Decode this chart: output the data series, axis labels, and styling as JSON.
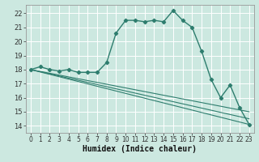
{
  "xlabel": "Humidex (Indice chaleur)",
  "xlim": [
    -0.5,
    23.5
  ],
  "ylim": [
    13.5,
    22.6
  ],
  "yticks": [
    14,
    15,
    16,
    17,
    18,
    19,
    20,
    21,
    22
  ],
  "xticks": [
    0,
    1,
    2,
    3,
    4,
    5,
    6,
    7,
    8,
    9,
    10,
    11,
    12,
    13,
    14,
    15,
    16,
    17,
    18,
    19,
    20,
    21,
    22,
    23
  ],
  "bg_color": "#cce8e0",
  "line_color": "#2e7d6e",
  "grid_color": "#ffffff",
  "curve1_x": [
    0,
    1,
    2,
    3,
    4,
    5,
    6,
    7,
    8,
    9,
    10,
    11,
    12,
    13,
    14,
    15,
    16,
    17,
    18,
    19,
    20,
    21,
    22,
    23
  ],
  "curve1_y": [
    18.0,
    18.2,
    18.0,
    17.9,
    18.0,
    17.8,
    17.8,
    17.8,
    18.5,
    20.6,
    21.5,
    21.5,
    21.4,
    21.5,
    21.4,
    22.2,
    21.5,
    21.0,
    19.3,
    17.3,
    16.0,
    16.9,
    15.3,
    14.1
  ],
  "line1_x": [
    0,
    23
  ],
  "line1_y": [
    18.0,
    14.1
  ],
  "line2_x": [
    0,
    23
  ],
  "line2_y": [
    18.0,
    14.1
  ],
  "line3_x": [
    0,
    23
  ],
  "line3_y": [
    18.0,
    14.1
  ],
  "tick_fontsize": 5.5,
  "xlabel_fontsize": 7
}
